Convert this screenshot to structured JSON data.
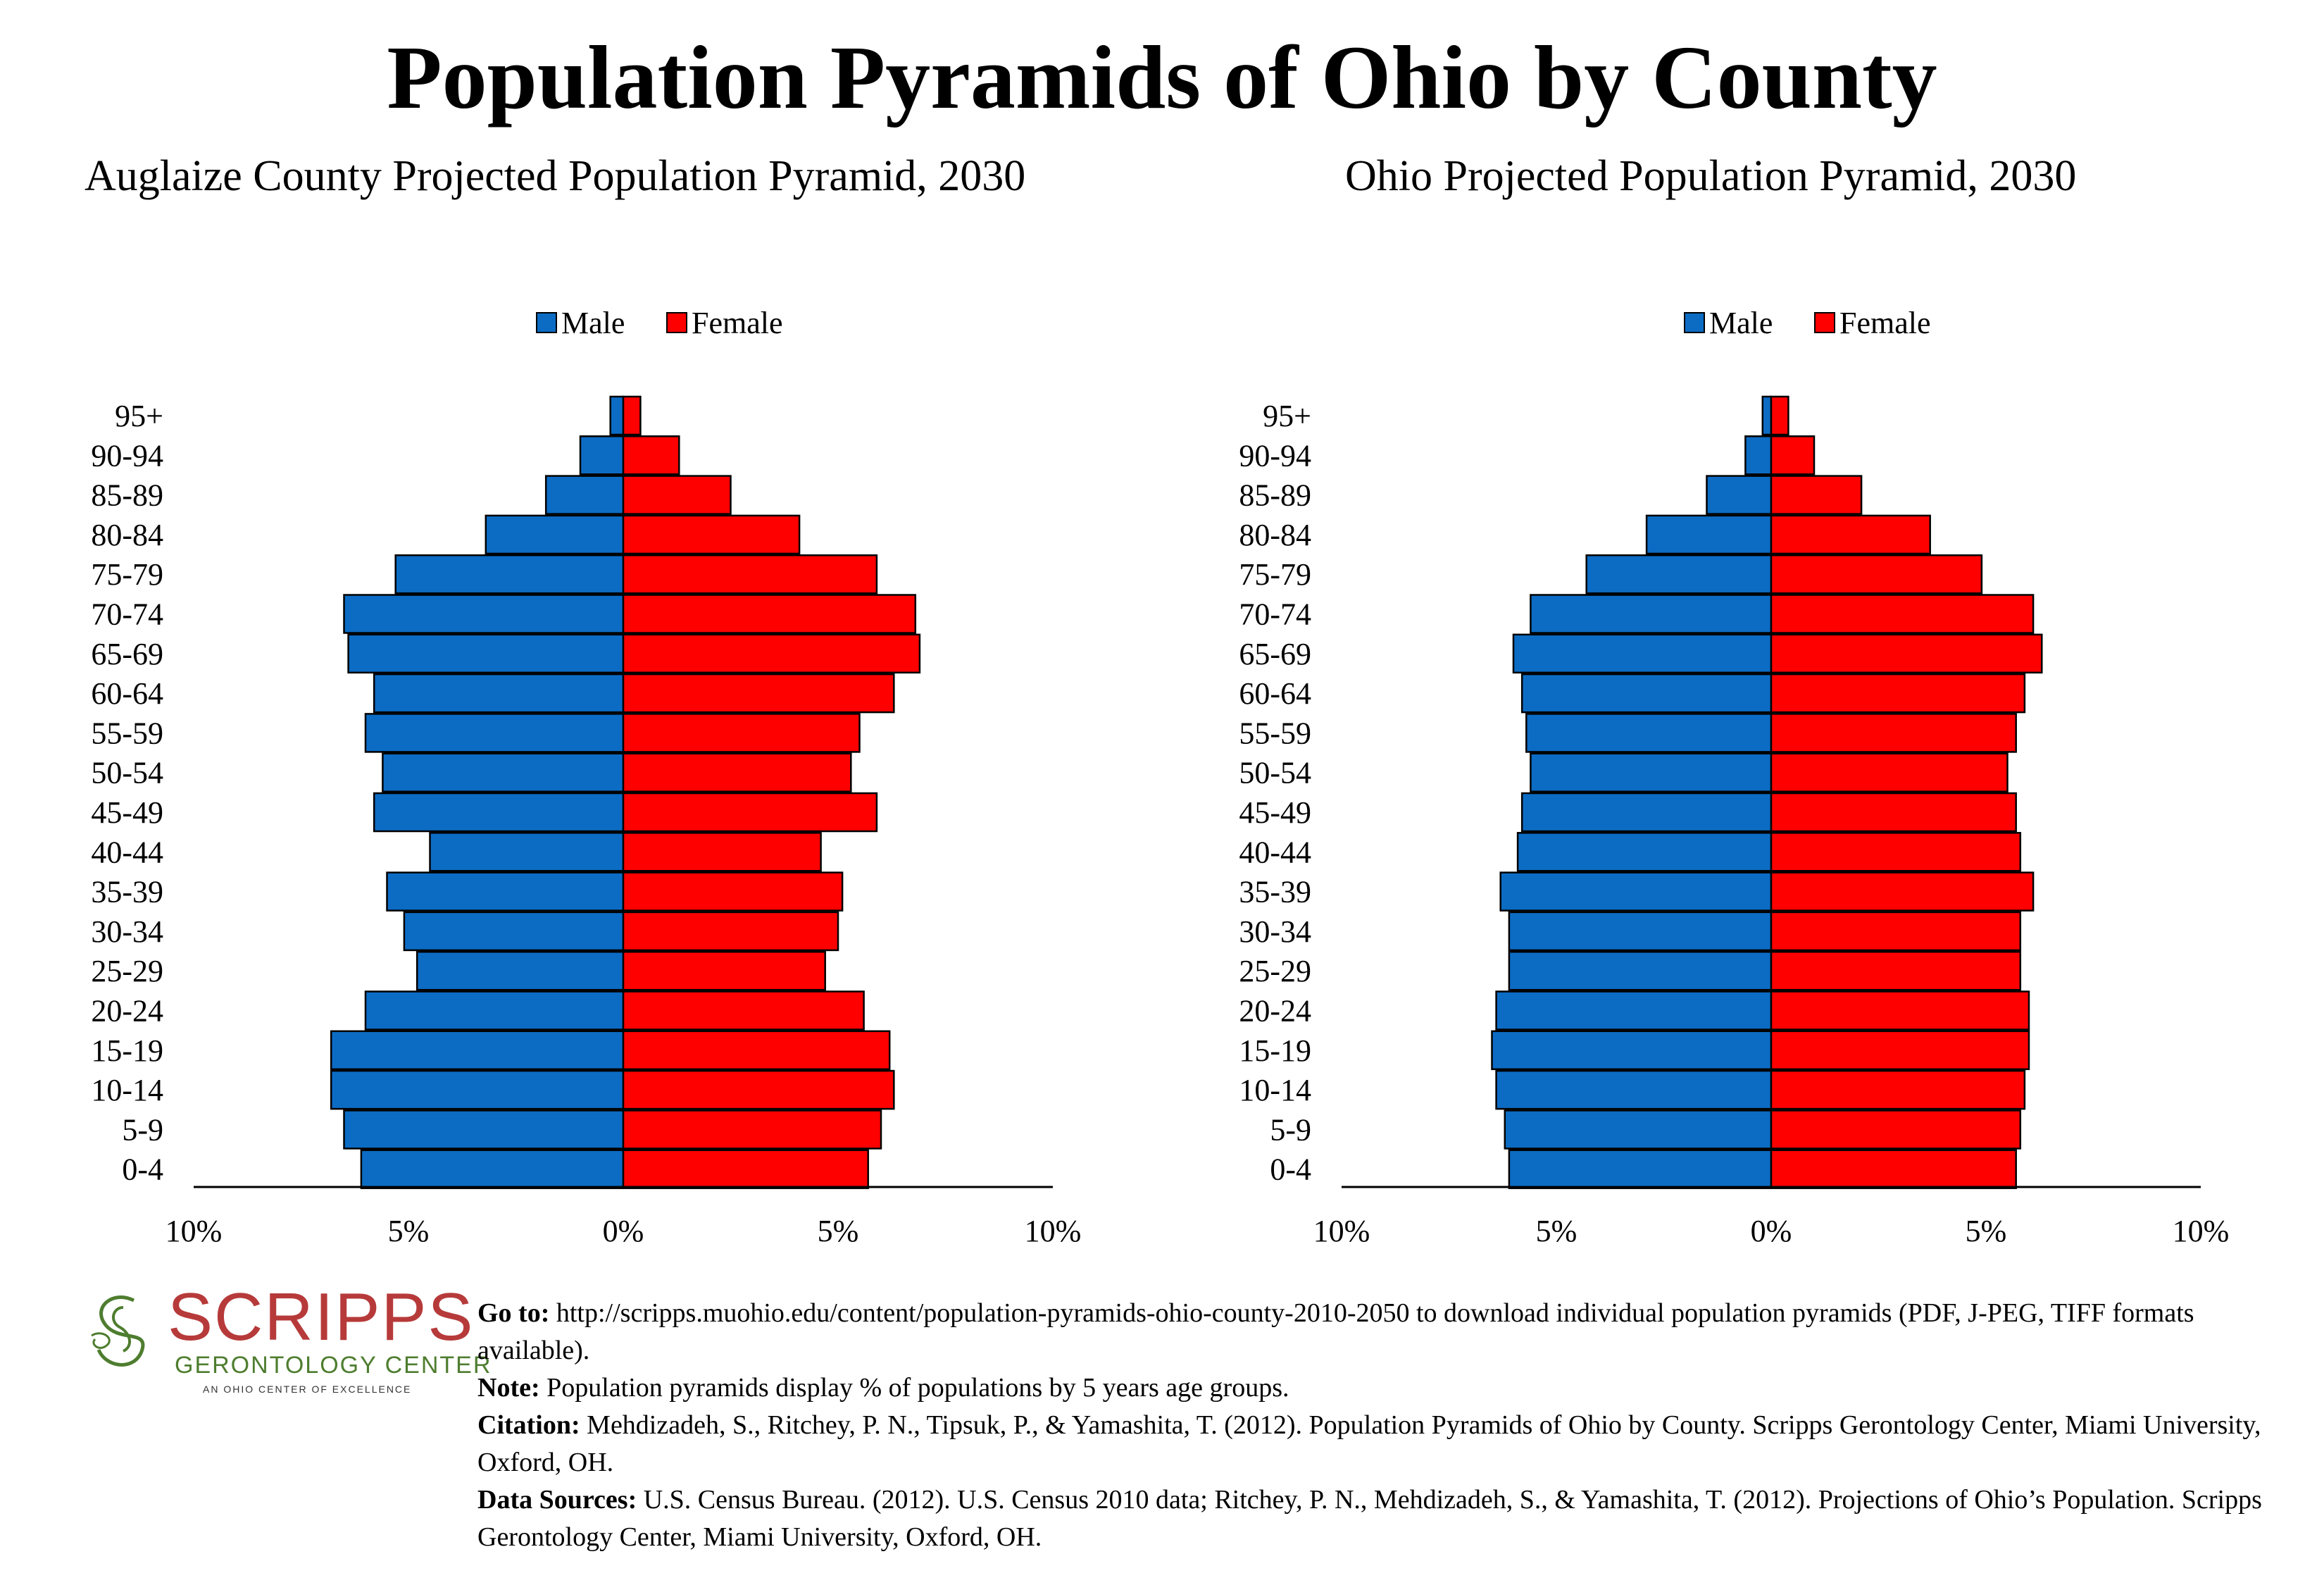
{
  "title": "Population Pyramids of Ohio by County",
  "chart_data": [
    {
      "type": "bar",
      "orientation": "horizontal-pyramid",
      "title": "Auglaize County Projected Population Pyramid, 2030",
      "categories": [
        "95+",
        "90-94",
        "85-89",
        "80-84",
        "75-79",
        "70-74",
        "65-69",
        "60-64",
        "55-59",
        "50-54",
        "45-49",
        "40-44",
        "35-39",
        "30-34",
        "25-29",
        "20-24",
        "15-19",
        "10-14",
        "5-9",
        "0-4"
      ],
      "series": [
        {
          "name": "Male",
          "color": "#0c6cc4",
          "values": [
            0.3,
            1.0,
            1.8,
            3.2,
            5.3,
            6.5,
            6.4,
            5.8,
            6.0,
            5.6,
            5.8,
            4.5,
            5.5,
            5.1,
            4.8,
            6.0,
            6.8,
            6.8,
            6.5,
            6.1
          ]
        },
        {
          "name": "Female",
          "color": "#ff0000",
          "values": [
            0.4,
            1.3,
            2.5,
            4.1,
            5.9,
            6.8,
            6.9,
            6.3,
            5.5,
            5.3,
            5.9,
            4.6,
            5.1,
            5.0,
            4.7,
            5.6,
            6.2,
            6.3,
            6.0,
            5.7
          ]
        }
      ],
      "xlim": [
        -10,
        10
      ],
      "xticks": [
        "10%",
        "5%",
        "0%",
        "5%",
        "10%"
      ],
      "legend": "top-center"
    },
    {
      "type": "bar",
      "orientation": "horizontal-pyramid",
      "title": "Ohio Projected Population Pyramid, 2030",
      "categories": [
        "95+",
        "90-94",
        "85-89",
        "80-84",
        "75-79",
        "70-74",
        "65-69",
        "60-64",
        "55-59",
        "50-54",
        "45-49",
        "40-44",
        "35-39",
        "30-34",
        "25-29",
        "20-24",
        "15-19",
        "10-14",
        "5-9",
        "0-4"
      ],
      "series": [
        {
          "name": "Male",
          "color": "#0c6cc4",
          "values": [
            0.2,
            0.6,
            1.5,
            2.9,
            4.3,
            5.6,
            6.0,
            5.8,
            5.7,
            5.6,
            5.8,
            5.9,
            6.3,
            6.1,
            6.1,
            6.4,
            6.5,
            6.4,
            6.2,
            6.1
          ]
        },
        {
          "name": "Female",
          "color": "#ff0000",
          "values": [
            0.4,
            1.0,
            2.1,
            3.7,
            4.9,
            6.1,
            6.3,
            5.9,
            5.7,
            5.5,
            5.7,
            5.8,
            6.1,
            5.8,
            5.8,
            6.0,
            6.0,
            5.9,
            5.8,
            5.7
          ]
        }
      ],
      "xlim": [
        -10,
        10
      ],
      "xticks": [
        "10%",
        "5%",
        "0%",
        "5%",
        "10%"
      ],
      "legend": "top-center"
    }
  ],
  "logo": {
    "name": "SCRIPPS",
    "subtitle": "GERONTOLOGY CENTER",
    "tagline": "AN OHIO CENTER OF EXCELLENCE"
  },
  "notes": {
    "goto_label": "Go to:",
    "goto_text": "http://scripps.muohio.edu/content/population-pyramids-ohio-county-2010-2050 to download individual population pyramids (PDF, J-PEG, TIFF formats available).",
    "note_label": "Note:",
    "note_text": "Population pyramids display % of populations by 5 years age groups.",
    "citation_label": "Citation:",
    "citation_text": "Mehdizadeh, S., Ritchey, P. N., Tipsuk, P., & Yamashita, T. (2012). Population Pyramids of Ohio by County. Scripps Gerontology Center, Miami University, Oxford, OH.",
    "sources_label": "Data Sources:",
    "sources_text": "U.S. Census Bureau. (2012). U.S. Census 2010 data; Ritchey, P. N., Mehdizadeh, S., & Yamashita, T. (2012). Projections of Ohio’s Population. Scripps Gerontology Center, Miami University, Oxford, OH."
  }
}
